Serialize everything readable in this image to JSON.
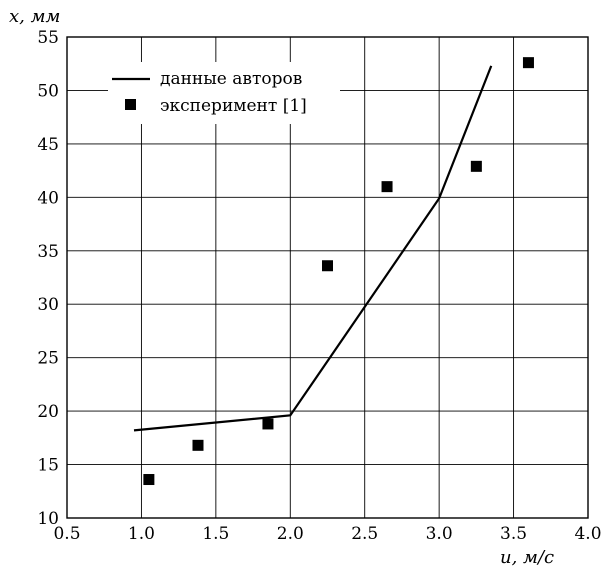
{
  "chart_data": {
    "type": "line",
    "xlabel": "u, м/с",
    "ylabel": "x, мм",
    "xlim": [
      0.5,
      4.0
    ],
    "ylim": [
      10,
      55
    ],
    "xticks": [
      0.5,
      1.0,
      1.5,
      2.0,
      2.5,
      3.0,
      3.5,
      4.0
    ],
    "xtick_labels": [
      "0.5",
      "1.0",
      "1.5",
      "2.0",
      "2.5",
      "3.0",
      "3.5",
      "4.0"
    ],
    "yticks": [
      10,
      15,
      20,
      25,
      30,
      35,
      40,
      45,
      50,
      55
    ],
    "ytick_labels": [
      "10",
      "15",
      "20",
      "25",
      "30",
      "35",
      "40",
      "45",
      "50",
      "55"
    ],
    "grid": true,
    "legend_position": "top-left",
    "series": [
      {
        "name": "данные авторов",
        "kind": "line",
        "color": "#000000",
        "x": [
          0.95,
          2.0,
          3.0,
          3.35
        ],
        "y": [
          18.2,
          19.6,
          39.9,
          52.3
        ]
      },
      {
        "name": "эксперимент [1]",
        "kind": "scatter",
        "marker": "square",
        "color": "#000000",
        "x": [
          1.05,
          1.38,
          1.85,
          2.25,
          2.65,
          3.25,
          3.6
        ],
        "y": [
          13.6,
          16.8,
          18.8,
          33.6,
          41.0,
          42.9,
          52.6
        ]
      }
    ]
  }
}
